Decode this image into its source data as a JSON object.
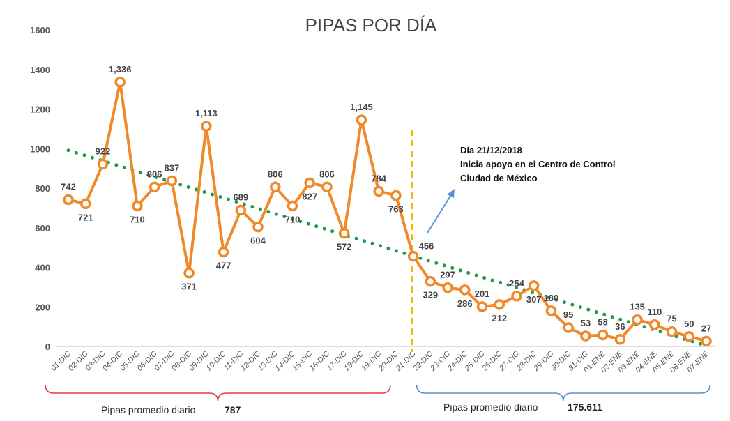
{
  "chart_data": {
    "type": "line",
    "title": "PIPAS POR DÍA",
    "ylim": [
      0,
      1600
    ],
    "yticks": [
      0,
      200,
      400,
      600,
      800,
      1000,
      1200,
      1400,
      1600
    ],
    "grid": false,
    "categories": [
      "01-DIC",
      "02-DIC",
      "03-DIC",
      "04-DIC",
      "05-DIC",
      "06-DIC",
      "07-DIC",
      "08-DIC",
      "09-DIC",
      "10-DIC",
      "11-DIC",
      "12-DIC",
      "13-DIC",
      "14-DIC",
      "15-DIC",
      "16-DIC",
      "17-DIC",
      "18-DIC",
      "19-DIC",
      "20-DIC",
      "21-DIC",
      "22-DIC",
      "23-DIC",
      "24-DIC",
      "25-DIC",
      "26-DIC",
      "27-DIC",
      "28-DIC",
      "29-DIC",
      "30-DIC",
      "31-DIC",
      "01-ENE",
      "02-ENE",
      "03-ENE",
      "04-ENE",
      "05-ENE",
      "06-ENE",
      "07-ENE"
    ],
    "values": [
      742,
      721,
      922,
      1336,
      710,
      806,
      837,
      371,
      1113,
      477,
      689,
      604,
      806,
      710,
      827,
      806,
      572,
      1145,
      784,
      763,
      456,
      329,
      297,
      286,
      201,
      212,
      254,
      307,
      180,
      95,
      53,
      58,
      36,
      135,
      110,
      75,
      50,
      27
    ],
    "data_labels": [
      "742",
      "721",
      "922",
      "1,336",
      "710",
      "806",
      "837",
      "371",
      "1,113",
      "477",
      "689",
      "604",
      "806",
      "710",
      "827",
      "806",
      "572",
      "1,145",
      "784",
      "763",
      "456",
      "329",
      "297",
      "286",
      "201",
      "212",
      "254",
      "307",
      "180",
      "95",
      "53",
      "58",
      "36",
      "135",
      "110",
      "75",
      "50",
      "27"
    ],
    "trendline": {
      "type": "linear",
      "style": "dotted",
      "color": "#1a9a4a"
    },
    "series_color": "#f0892a",
    "marker_line_color": "#f5b800",
    "marker_category": "21-DIC",
    "annotation": [
      "Día 21/12/2018",
      "Inicia apoyo en el Centro de Control",
      "Ciudad de México"
    ],
    "periods": [
      {
        "label": "Pipas promedio diario",
        "value": "787",
        "from": "01-DIC",
        "to": "20-DIC",
        "color": "#e0413a"
      },
      {
        "label": "Pipas promedio diario",
        "value": "175.611",
        "from": "21-DIC",
        "to": "07-ENE",
        "color": "#5b8fd0"
      }
    ]
  }
}
